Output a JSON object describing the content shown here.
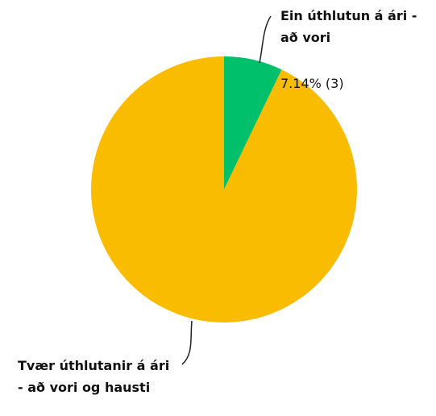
{
  "chart_data": {
    "type": "pie",
    "categories": [
      "Ein úthlutun á ári - að vori",
      "Tvær úthlutanir á ári - að vori og hausti"
    ],
    "values": [
      7.14,
      92.86
    ],
    "value_labels": [
      "7.14% (3)",
      null
    ],
    "colors": [
      "#00c06b",
      "#f9bc00"
    ]
  }
}
